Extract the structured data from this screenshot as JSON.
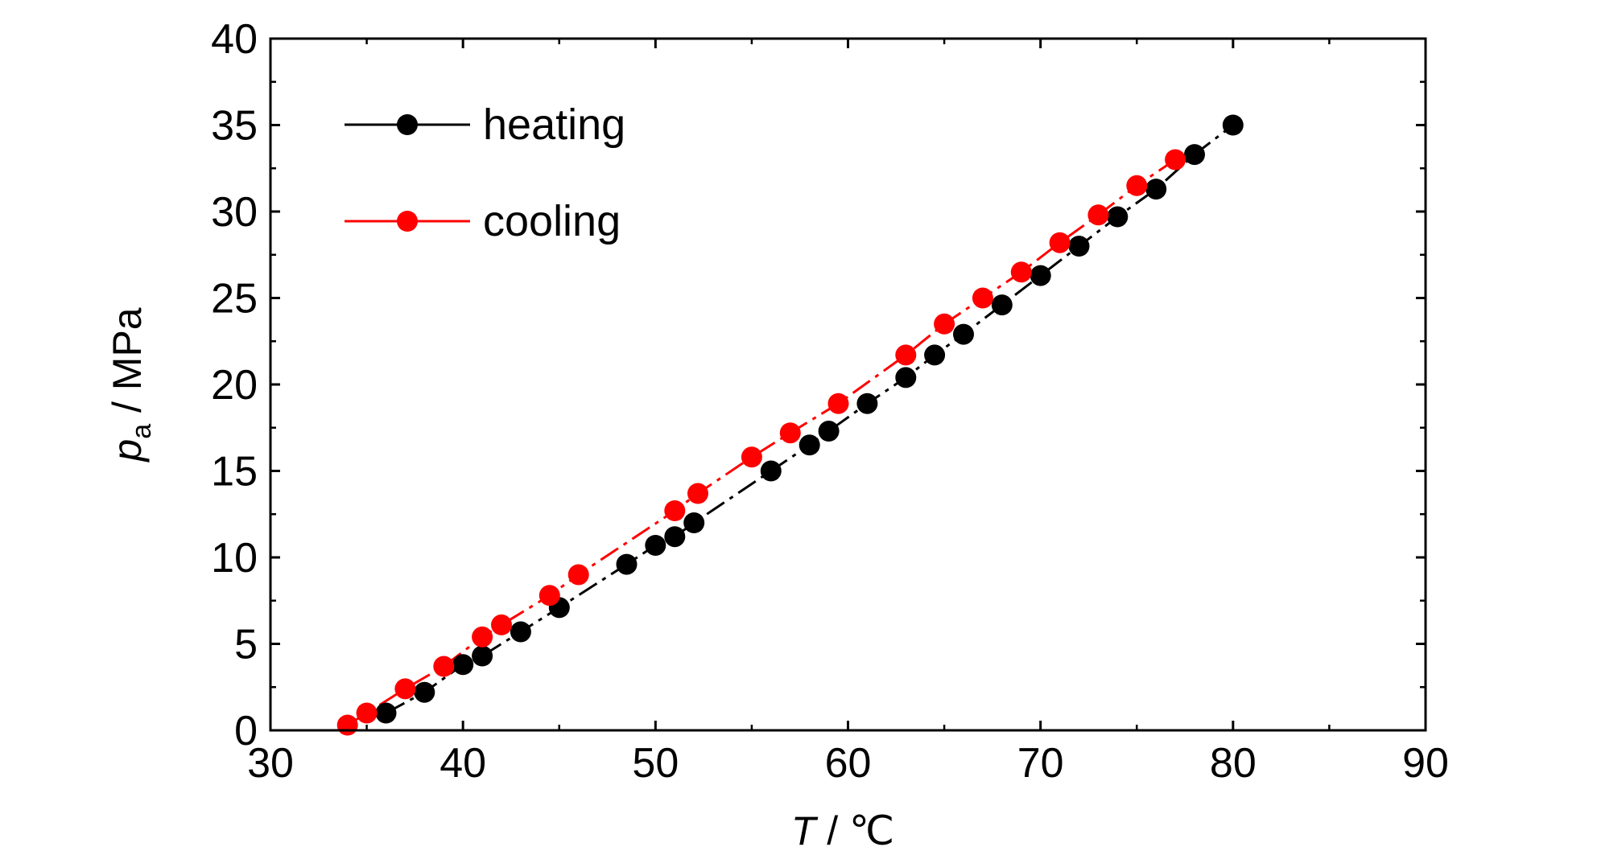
{
  "chart_data": {
    "type": "line",
    "title": "",
    "xlabel": {
      "symbol": "T",
      "unit": " / ℃"
    },
    "ylabel": {
      "symbol": "p",
      "subscript": "a",
      "unit": " / MPa"
    },
    "xlim": [
      30,
      90
    ],
    "ylim": [
      0,
      40
    ],
    "xticks": [
      30,
      40,
      50,
      60,
      70,
      80,
      90
    ],
    "yticks": [
      0,
      5,
      10,
      15,
      20,
      25,
      30,
      35,
      40
    ],
    "grid": false,
    "legend_position": "top-left",
    "series": [
      {
        "name": "heating",
        "color": "#000000",
        "marker": "circle",
        "line_style": "dash-dot",
        "x": [
          36,
          38,
          40,
          41,
          43,
          45,
          48.5,
          50,
          51,
          52,
          56,
          58,
          59,
          61,
          63,
          64.5,
          66,
          68,
          70,
          72,
          74,
          76,
          78,
          80
        ],
        "y": [
          1.0,
          2.2,
          3.8,
          4.3,
          5.7,
          7.1,
          9.6,
          10.7,
          11.2,
          12.0,
          15.0,
          16.5,
          17.3,
          18.9,
          20.4,
          21.7,
          22.9,
          24.6,
          26.3,
          28.0,
          29.7,
          31.3,
          33.3,
          35.0
        ]
      },
      {
        "name": "cooling",
        "color": "#ff0000",
        "marker": "circle",
        "line_style": "dash-dot",
        "x": [
          34,
          35,
          37,
          39,
          41,
          42,
          44.5,
          46,
          51,
          52.2,
          55,
          57,
          59.5,
          63,
          65,
          67,
          69,
          71,
          73,
          75,
          77
        ],
        "y": [
          0.3,
          1.0,
          2.4,
          3.7,
          5.4,
          6.1,
          7.8,
          9.0,
          12.7,
          13.7,
          15.8,
          17.2,
          18.9,
          21.7,
          23.5,
          25.0,
          26.5,
          28.2,
          29.8,
          31.5,
          33.0
        ]
      }
    ]
  }
}
